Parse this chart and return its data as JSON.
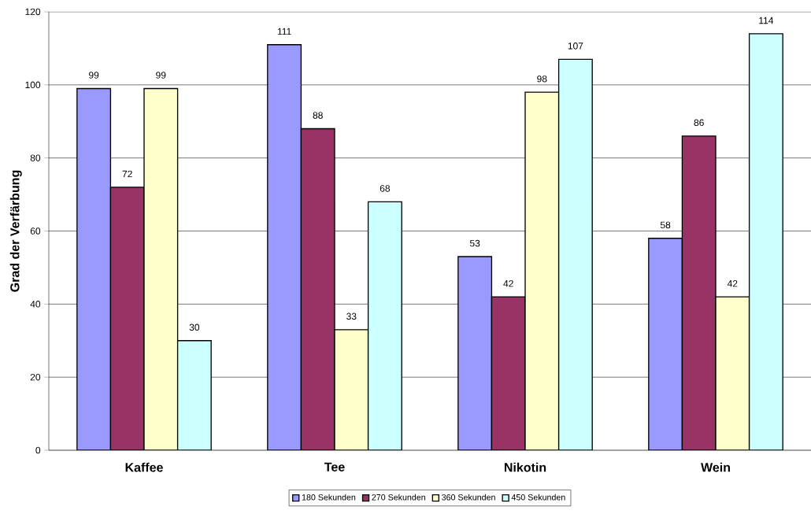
{
  "chart_data": {
    "type": "bar",
    "ylabel": "Grad der Verfärbung",
    "categories": [
      "Kaffee",
      "Tee",
      "Nikotin",
      "Wein"
    ],
    "series": [
      {
        "name": "180 Sekunden",
        "color": "#9999ff",
        "values": [
          99,
          111,
          53,
          58
        ]
      },
      {
        "name": "270 Sekunden",
        "color": "#993366",
        "values": [
          72,
          88,
          42,
          86
        ]
      },
      {
        "name": "360 Sekunden",
        "color": "#ffffcc",
        "values": [
          99,
          33,
          98,
          42
        ]
      },
      {
        "name": "450 Sekunden",
        "color": "#ccffff",
        "values": [
          30,
          68,
          107,
          114
        ]
      }
    ],
    "ylim": [
      0,
      120
    ],
    "yticks": [
      0,
      20,
      40,
      60,
      80,
      100,
      120
    ],
    "grid": "y",
    "legend": "bottom",
    "data_labels": true
  }
}
